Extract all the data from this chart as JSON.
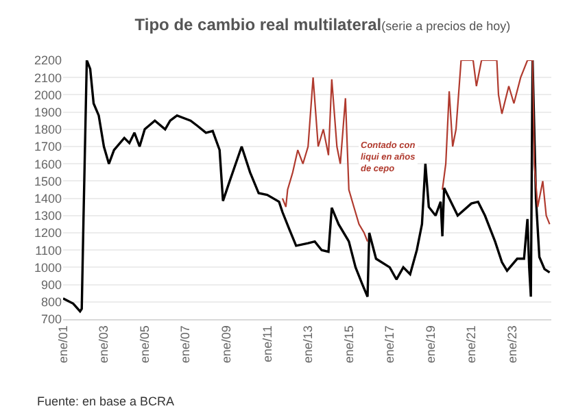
{
  "chart_data": {
    "type": "line",
    "title": "Tipo de cambio real multilateral",
    "subtitle": "(serie a precios de hoy)",
    "series": [
      {
        "color": "#000000",
        "x": [
          "2001-01",
          "2001-07",
          "2001-11",
          "2001-12",
          "2002-01",
          "2002-03",
          "2002-05",
          "2002-07",
          "2002-10",
          "2003-01",
          "2003-04",
          "2003-07",
          "2004-01",
          "2004-04",
          "2004-07",
          "2004-10",
          "2005-01",
          "2005-07",
          "2006-01",
          "2006-04",
          "2006-08",
          "2007-04",
          "2007-08",
          "2008-01",
          "2008-05",
          "2008-09",
          "2008-11",
          "2009-03",
          "2009-10",
          "2010-03",
          "2010-08",
          "2011-01",
          "2011-08",
          "2011-10",
          "2012-02",
          "2012-06",
          "2013-01",
          "2013-05",
          "2013-09",
          "2014-01",
          "2014-03",
          "2014-07",
          "2015-01",
          "2015-05",
          "2015-09",
          "2015-12",
          "2016-01",
          "2016-05",
          "2017-01",
          "2017-05",
          "2017-09",
          "2018-01",
          "2018-05",
          "2018-08",
          "2018-10",
          "2018-12",
          "2019-04",
          "2019-07",
          "2019-08",
          "2019-09",
          "2020-05",
          "2021-01",
          "2021-05",
          "2021-09",
          "2022-03",
          "2022-07",
          "2022-10",
          "2023-04",
          "2023-08",
          "2023-10",
          "2023-11",
          "2023-12",
          "2024-01",
          "2024-03",
          "2024-05",
          "2024-08",
          "2024-11"
        ],
        "values": [
          820,
          790,
          745,
          760,
          1280,
          2200,
          2150,
          1950,
          1880,
          1700,
          1600,
          1680,
          1750,
          1720,
          1780,
          1700,
          1800,
          1850,
          1800,
          1850,
          1880,
          1850,
          1820,
          1780,
          1790,
          1680,
          1385,
          1500,
          1700,
          1550,
          1430,
          1420,
          1380,
          1320,
          1220,
          1125,
          1140,
          1150,
          1100,
          1090,
          1345,
          1250,
          1150,
          1000,
          900,
          830,
          1200,
          1050,
          1000,
          930,
          1000,
          960,
          1100,
          1250,
          1600,
          1350,
          1300,
          1380,
          1180,
          1460,
          1300,
          1370,
          1380,
          1300,
          1150,
          1030,
          980,
          1050,
          1050,
          1280,
          1000,
          830,
          2200,
          1400,
          1060,
          990,
          970
        ]
      },
      {
        "color": "#b03a2e",
        "x": [
          "2011-10",
          "2011-12",
          "2012-01",
          "2012-04",
          "2012-07",
          "2012-10",
          "2013-01",
          "2013-04",
          "2013-07",
          "2013-10",
          "2014-01",
          "2014-03",
          "2014-06",
          "2014-08",
          "2014-11",
          "2015-01",
          "2015-04",
          "2015-07",
          "2015-10",
          "2015-12",
          "2017-12",
          "2019-08",
          "2019-10",
          "2019-12",
          "2020-02",
          "2020-04",
          "2020-07",
          "2021-02",
          "2021-04",
          "2021-07",
          "2022-04",
          "2022-05",
          "2022-07",
          "2022-11",
          "2023-02",
          "2023-06",
          "2023-10",
          "2024-01",
          "2024-02",
          "2024-04",
          "2024-07",
          "2024-09",
          "2024-11"
        ],
        "values": [
          1400,
          1350,
          1450,
          1550,
          1680,
          1600,
          1700,
          2100,
          1700,
          1800,
          1650,
          2090,
          1700,
          1600,
          1980,
          1450,
          1350,
          1250,
          1200,
          1150,
          null,
          1450,
          1600,
          2020,
          1700,
          1800,
          2200,
          2200,
          2050,
          2200,
          2200,
          2000,
          1890,
          2050,
          1950,
          2100,
          2200,
          2200,
          1600,
          1350,
          1500,
          1300,
          1250
        ]
      }
    ],
    "xlim": [
      "2001-01",
      "2024-12"
    ],
    "xticks": [
      {
        "value": "2001-01",
        "label": "ene/01"
      },
      {
        "value": "2003-01",
        "label": "ene/03"
      },
      {
        "value": "2005-01",
        "label": "ene/05"
      },
      {
        "value": "2007-01",
        "label": "ene/07"
      },
      {
        "value": "2009-01",
        "label": "ene/09"
      },
      {
        "value": "2011-01",
        "label": "ene/11"
      },
      {
        "value": "2013-01",
        "label": "ene/13"
      },
      {
        "value": "2015-01",
        "label": "ene/15"
      },
      {
        "value": "2017-01",
        "label": "ene/17"
      },
      {
        "value": "2019-01",
        "label": "ene/19"
      },
      {
        "value": "2021-01",
        "label": "ene/21"
      },
      {
        "value": "2023-01",
        "label": "ene/23"
      }
    ],
    "ylim": [
      700,
      2200
    ],
    "yticks": [
      700,
      800,
      900,
      1000,
      1100,
      1200,
      1300,
      1400,
      1500,
      1600,
      1700,
      1800,
      1900,
      2000,
      2100,
      2200
    ],
    "grid": "y",
    "marker": "none",
    "line_style": "solid",
    "annotations": [
      "Contado con liqui en años de cepo",
      "Fuente: en base a BCRA"
    ]
  }
}
